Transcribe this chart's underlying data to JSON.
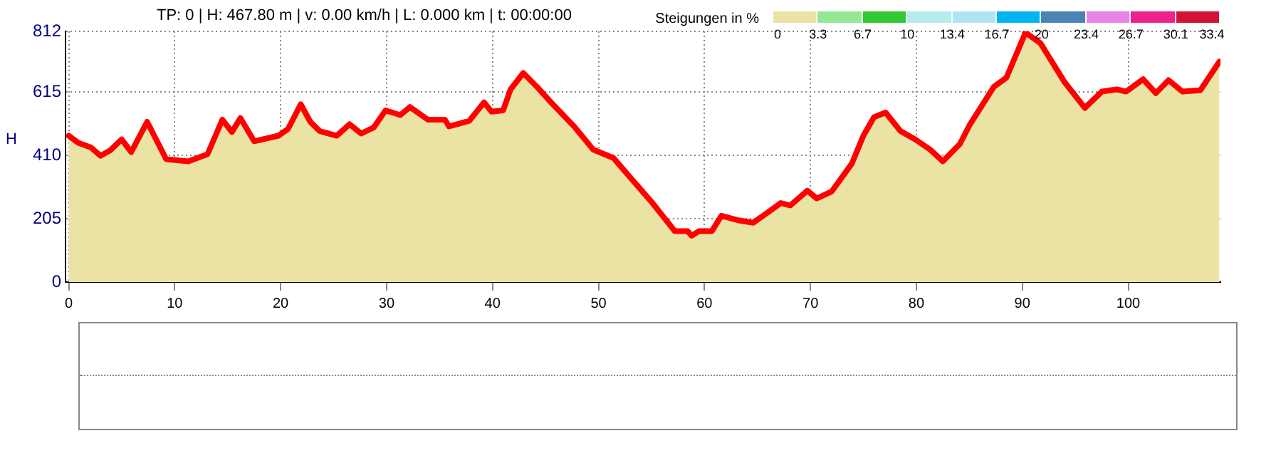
{
  "chart_data": {
    "type": "area",
    "title": "TP: 0 | H: 467.80 m | v: 0.00 km/h | L: 0.000 km | t: 00:00:00",
    "ylabel": "H",
    "annotations": [
      "Steigungen in %",
      "0",
      "3.3",
      "6.7",
      "10",
      "13.4",
      "16.7",
      "20",
      "23.4",
      "26.7",
      "30.1",
      "33.4"
    ],
    "series": [
      {
        "color": "#ff0000",
        "x": [
          0,
          0.9,
          2.1,
          3.0,
          3.9,
          5.0,
          5.9,
          7.4,
          9.2,
          11.3,
          13.1,
          14.5,
          15.4,
          16.2,
          17.5,
          19.8,
          20.7,
          21.9,
          22.8,
          23.7,
          25.3,
          26.5,
          27.6,
          28.8,
          29.9,
          31.3,
          32.2,
          33.9,
          35.5,
          35.9,
          37.8,
          39.2,
          39.9,
          41.0,
          41.7,
          42.9,
          44.2,
          45.6,
          47.7,
          49.5,
          51.4,
          53.2,
          55.0,
          57.2,
          58.4,
          58.8,
          59.5,
          60.7,
          61.6,
          63.2,
          64.6,
          66.0,
          67.2,
          68.1,
          69.7,
          70.6,
          72.0,
          73.9,
          75.0,
          76.0,
          77.1,
          78.5,
          79.9,
          81.3,
          82.5,
          84.1,
          85.0,
          87.3,
          88.5,
          90.3,
          91.7,
          94.0,
          95.9,
          97.5,
          98.9,
          99.8,
          101.4,
          102.6,
          103.8,
          105.1,
          106.8,
          108.6
        ],
        "values": [
          474,
          451,
          436,
          409,
          426,
          462,
          421,
          519,
          398,
          391,
          414,
          526,
          486,
          531,
          456,
          474,
          496,
          576,
          519,
          489,
          474,
          511,
          481,
          501,
          556,
          541,
          567,
          526,
          526,
          504,
          522,
          582,
          552,
          556,
          624,
          677,
          632,
          579,
          504,
          429,
          402,
          331,
          260,
          165,
          165,
          150,
          165,
          165,
          215,
          200,
          192,
          226,
          256,
          248,
          296,
          271,
          293,
          383,
          474,
          534,
          549,
          489,
          462,
          429,
          391,
          447,
          507,
          632,
          662,
          808,
          774,
          647,
          564,
          617,
          624,
          617,
          657,
          612,
          654,
          617,
          621,
          714
        ]
      }
    ],
    "xlim": [
      -0.3,
      108.7
    ],
    "xticks": [
      0,
      10,
      20,
      30,
      40,
      50,
      60,
      70,
      80,
      90,
      100
    ],
    "ylim": [
      0,
      812
    ],
    "yticks": [
      0,
      205,
      410,
      615,
      812
    ],
    "grid": true,
    "legend": false
  }
}
